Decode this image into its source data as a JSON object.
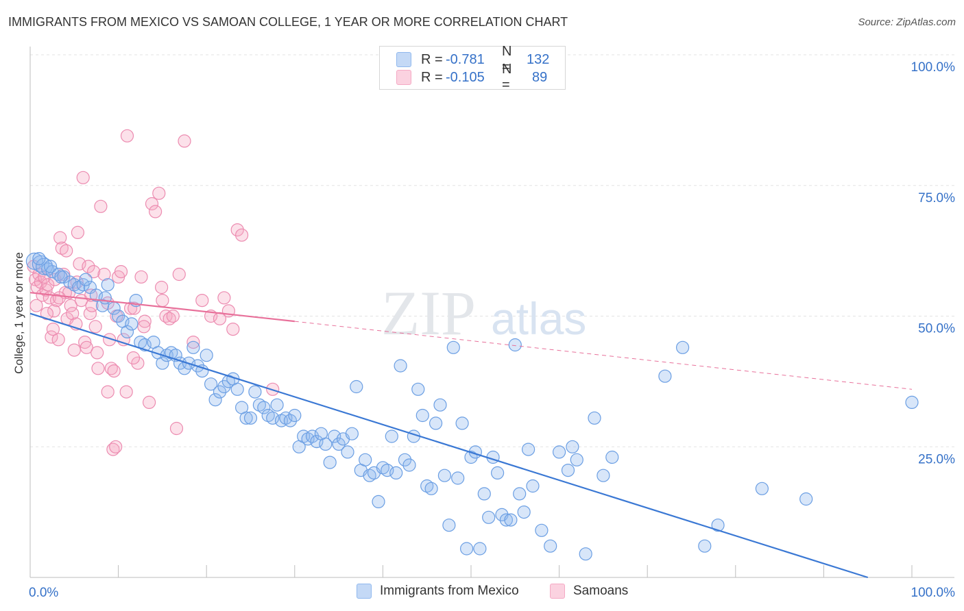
{
  "title": "IMMIGRANTS FROM MEXICO VS SAMOAN COLLEGE, 1 YEAR OR MORE CORRELATION CHART",
  "source": "Source: ZipAtlas.com",
  "watermark": {
    "zip": "ZIP",
    "atlas": "atlas"
  },
  "legend": {
    "rows": [
      {
        "r_label": "R =",
        "r_value": "-0.781",
        "n_label": "N =",
        "n_value": "132",
        "color": "#8fb8ee"
      },
      {
        "r_label": "R =",
        "r_value": "-0.105",
        "n_label": "N =",
        "n_value": "89",
        "color": "#f5a9c4"
      }
    ]
  },
  "bottom_legend": [
    {
      "label": "Immigrants from Mexico",
      "color": "#8fb8ee"
    },
    {
      "label": "Samoans",
      "color": "#f5a9c4"
    }
  ],
  "colors": {
    "blue": "#3a78d4",
    "pink": "#e8709a",
    "tick_label": "#3571c8",
    "grid": "#e3e3e3"
  },
  "chart_data": {
    "type": "scatter",
    "title": "IMMIGRANTS FROM MEXICO VS SAMOAN COLLEGE, 1 YEAR OR MORE CORRELATION CHART",
    "xlabel": "",
    "ylabel": "College, 1 year or more",
    "xlim": [
      0,
      100
    ],
    "ylim": [
      0,
      100
    ],
    "x_tick_labels": [
      "0.0%",
      "100.0%"
    ],
    "y_tick_labels": [
      "100.0%",
      "75.0%",
      "50.0%",
      "25.0%"
    ],
    "y_ticks": [
      100,
      75,
      50,
      25
    ],
    "grid": true,
    "legend_position": "top-center",
    "series": [
      {
        "name": "Immigrants from Mexico",
        "color": "#8fb8ee",
        "stroke": "#6a9ee3",
        "trend": {
          "x": [
            0,
            95
          ],
          "y": [
            50.5,
            0
          ]
        },
        "points": [
          [
            0.5,
            60.5
          ],
          [
            1.2,
            60
          ],
          [
            1.6,
            59.5
          ],
          [
            2,
            59
          ],
          [
            2.5,
            58.5
          ],
          [
            3.2,
            58
          ],
          [
            3.8,
            57.5
          ],
          [
            4.5,
            56.5
          ],
          [
            5,
            56
          ],
          [
            5.5,
            55.5
          ],
          [
            6,
            56
          ],
          [
            6.8,
            55.5
          ],
          [
            7.5,
            54
          ],
          [
            8.2,
            52
          ],
          [
            8.8,
            56
          ],
          [
            9.5,
            51.5
          ],
          [
            10,
            50
          ],
          [
            10.5,
            49
          ],
          [
            11,
            47
          ],
          [
            11.5,
            48.5
          ],
          [
            12,
            53
          ],
          [
            12.5,
            45
          ],
          [
            13,
            44.5
          ],
          [
            14,
            45
          ],
          [
            14.5,
            43
          ],
          [
            15,
            41
          ],
          [
            15.5,
            42.5
          ],
          [
            16,
            43
          ],
          [
            16.5,
            42.5
          ],
          [
            17,
            41
          ],
          [
            17.5,
            40
          ],
          [
            18,
            41
          ],
          [
            18.5,
            44
          ],
          [
            19,
            40.5
          ],
          [
            19.5,
            39.5
          ],
          [
            20,
            42.5
          ],
          [
            20.5,
            37
          ],
          [
            21,
            34
          ],
          [
            21.5,
            35.5
          ],
          [
            22,
            36.5
          ],
          [
            22.5,
            37.5
          ],
          [
            23,
            38
          ],
          [
            23.5,
            36
          ],
          [
            24,
            32.5
          ],
          [
            24.5,
            30.5
          ],
          [
            25,
            30.5
          ],
          [
            25.5,
            35.5
          ],
          [
            26,
            33
          ],
          [
            26.5,
            32.5
          ],
          [
            27,
            31
          ],
          [
            27.5,
            30.5
          ],
          [
            28,
            33
          ],
          [
            28.5,
            30
          ],
          [
            29,
            30.5
          ],
          [
            29.5,
            30
          ],
          [
            30,
            31
          ],
          [
            30.5,
            25
          ],
          [
            31,
            27
          ],
          [
            31.5,
            26.5
          ],
          [
            32,
            27
          ],
          [
            32.5,
            26
          ],
          [
            33,
            27.5
          ],
          [
            33.5,
            25.5
          ],
          [
            34,
            22
          ],
          [
            34.5,
            27
          ],
          [
            35,
            25.5
          ],
          [
            35.5,
            26.5
          ],
          [
            36,
            24
          ],
          [
            36.5,
            27.5
          ],
          [
            37,
            36.5
          ],
          [
            37.5,
            20.5
          ],
          [
            38,
            22.5
          ],
          [
            38.5,
            19.5
          ],
          [
            39,
            20
          ],
          [
            39.5,
            14.5
          ],
          [
            40,
            21
          ],
          [
            40.5,
            20.5
          ],
          [
            41,
            27
          ],
          [
            41.5,
            20
          ],
          [
            42,
            40.5
          ],
          [
            42.5,
            22.5
          ],
          [
            43,
            21.5
          ],
          [
            43.5,
            27
          ],
          [
            44,
            36
          ],
          [
            44.5,
            31
          ],
          [
            45,
            17.5
          ],
          [
            45.5,
            17
          ],
          [
            46,
            29.5
          ],
          [
            46.5,
            33
          ],
          [
            47,
            19.5
          ],
          [
            47.5,
            10
          ],
          [
            48,
            44
          ],
          [
            48.5,
            19
          ],
          [
            49,
            29.5
          ],
          [
            49.5,
            5.5
          ],
          [
            50,
            23
          ],
          [
            50.5,
            24
          ],
          [
            51,
            5.5
          ],
          [
            51.5,
            16
          ],
          [
            52,
            11.5
          ],
          [
            52.5,
            23
          ],
          [
            53,
            20
          ],
          [
            53.5,
            12
          ],
          [
            54,
            11
          ],
          [
            54.5,
            11
          ],
          [
            55,
            44.5
          ],
          [
            55.5,
            16
          ],
          [
            56,
            12.5
          ],
          [
            56.5,
            24.5
          ],
          [
            57,
            17.5
          ],
          [
            58,
            9
          ],
          [
            59,
            6
          ],
          [
            60,
            24
          ],
          [
            61,
            20.5
          ],
          [
            61.5,
            25
          ],
          [
            62,
            22.5
          ],
          [
            63,
            4.5
          ],
          [
            64,
            30.5
          ],
          [
            65,
            19.5
          ],
          [
            66,
            23
          ],
          [
            72,
            38.5
          ],
          [
            74,
            44
          ],
          [
            76.5,
            6
          ],
          [
            78,
            10
          ],
          [
            83,
            17
          ],
          [
            88,
            15
          ],
          [
            100,
            33.5
          ],
          [
            1,
            61
          ],
          [
            2.3,
            59.5
          ],
          [
            3.5,
            57.5
          ],
          [
            6.3,
            57
          ],
          [
            8.5,
            53.5
          ]
        ]
      },
      {
        "name": "Samoans",
        "color": "#f5a9c4",
        "stroke": "#ec8bb0",
        "trend": {
          "x": [
            0,
            30
          ],
          "y": [
            54.5,
            49
          ]
        },
        "trend_dashed": {
          "x": [
            30,
            100
          ],
          "y": [
            49,
            36
          ]
        },
        "points": [
          [
            0.4,
            59.5
          ],
          [
            0.6,
            57
          ],
          [
            0.8,
            55.5
          ],
          [
            1,
            58
          ],
          [
            1.2,
            56.5
          ],
          [
            1.4,
            54
          ],
          [
            1.6,
            57.5
          ],
          [
            1.8,
            55
          ],
          [
            2,
            56
          ],
          [
            2.2,
            53.5
          ],
          [
            2.4,
            46
          ],
          [
            2.6,
            47.5
          ],
          [
            2.8,
            57
          ],
          [
            3,
            53
          ],
          [
            3.2,
            45.5
          ],
          [
            3.4,
            65
          ],
          [
            3.6,
            63
          ],
          [
            3.8,
            58
          ],
          [
            4,
            54.5
          ],
          [
            4.2,
            49.5
          ],
          [
            4.4,
            54.5
          ],
          [
            4.6,
            52
          ],
          [
            4.8,
            50.5
          ],
          [
            5,
            43.5
          ],
          [
            5.2,
            48.5
          ],
          [
            5.4,
            66
          ],
          [
            5.6,
            60
          ],
          [
            5.8,
            53
          ],
          [
            6,
            76.5
          ],
          [
            6.2,
            45
          ],
          [
            6.4,
            44
          ],
          [
            6.6,
            59.5
          ],
          [
            6.8,
            50.5
          ],
          [
            7,
            52
          ],
          [
            7.2,
            58.5
          ],
          [
            7.4,
            48
          ],
          [
            7.6,
            43
          ],
          [
            8,
            71
          ],
          [
            8.4,
            58
          ],
          [
            8.8,
            52.5
          ],
          [
            9,
            45.5
          ],
          [
            9.2,
            40
          ],
          [
            9.5,
            39.5
          ],
          [
            9.8,
            50
          ],
          [
            10,
            57.5
          ],
          [
            10.3,
            58.5
          ],
          [
            10.6,
            45.5
          ],
          [
            11,
            84.5
          ],
          [
            11.4,
            51.5
          ],
          [
            11.8,
            51.5
          ],
          [
            12.2,
            41
          ],
          [
            12.6,
            57.5
          ],
          [
            13,
            49
          ],
          [
            13.5,
            33.5
          ],
          [
            13.8,
            71.5
          ],
          [
            14.2,
            70
          ],
          [
            14.6,
            73.5
          ],
          [
            15,
            53
          ],
          [
            15.4,
            50
          ],
          [
            15.8,
            49.5
          ],
          [
            16.2,
            50
          ],
          [
            16.6,
            28.5
          ],
          [
            17.5,
            83.5
          ],
          [
            18.5,
            45
          ],
          [
            19.5,
            53
          ],
          [
            20.5,
            50
          ],
          [
            21.5,
            49.5
          ],
          [
            22,
            53.5
          ],
          [
            22.5,
            51
          ],
          [
            23,
            47.5
          ],
          [
            23.5,
            66.5
          ],
          [
            24,
            65.5
          ],
          [
            27.5,
            36
          ],
          [
            9.4,
            24.5
          ],
          [
            9.7,
            25
          ],
          [
            8.8,
            35.5
          ],
          [
            7.7,
            40
          ],
          [
            10.9,
            35.5
          ],
          [
            12.9,
            48
          ],
          [
            6.9,
            54
          ],
          [
            5.3,
            56.5
          ],
          [
            4.1,
            62.5
          ],
          [
            3.3,
            53.5
          ],
          [
            2.7,
            51
          ],
          [
            1.9,
            50.5
          ],
          [
            11.7,
            42
          ],
          [
            14.9,
            55.5
          ],
          [
            16.9,
            58
          ],
          [
            0.7,
            52
          ]
        ]
      }
    ]
  }
}
